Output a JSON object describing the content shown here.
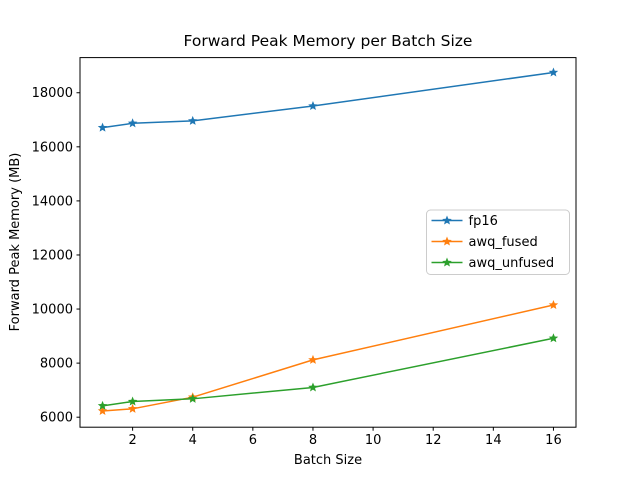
{
  "figure": {
    "background": "#ffffff"
  },
  "chart_data": {
    "type": "line",
    "title": "Forward Peak Memory per Batch Size",
    "xlabel": "Batch Size",
    "ylabel": "Forward Peak Memory (MB)",
    "x": [
      1,
      2,
      4,
      8,
      16
    ],
    "series": [
      {
        "name": "fp16",
        "color": "#1f77b4",
        "marker": "star",
        "values": [
          16710,
          16870,
          16960,
          17510,
          18750
        ]
      },
      {
        "name": "awq_fused",
        "color": "#ff7f0e",
        "marker": "star",
        "values": [
          6230,
          6310,
          6740,
          8120,
          10150
        ]
      },
      {
        "name": "awq_unfused",
        "color": "#2ca02c",
        "marker": "star",
        "values": [
          6420,
          6580,
          6680,
          7100,
          8920
        ]
      }
    ],
    "xlim": [
      0.25,
      16.75
    ],
    "ylim": [
      5630,
      19300
    ],
    "xticks": [
      2,
      4,
      6,
      8,
      10,
      12,
      14,
      16
    ],
    "yticks": [
      6000,
      8000,
      10000,
      12000,
      14000,
      16000,
      18000
    ],
    "grid": false,
    "legend": {
      "position": "center-right",
      "entries": [
        "fp16",
        "awq_fused",
        "awq_unfused"
      ],
      "border_color": "#cccccc",
      "background": "#ffffff"
    },
    "axis_color": "#000000"
  }
}
